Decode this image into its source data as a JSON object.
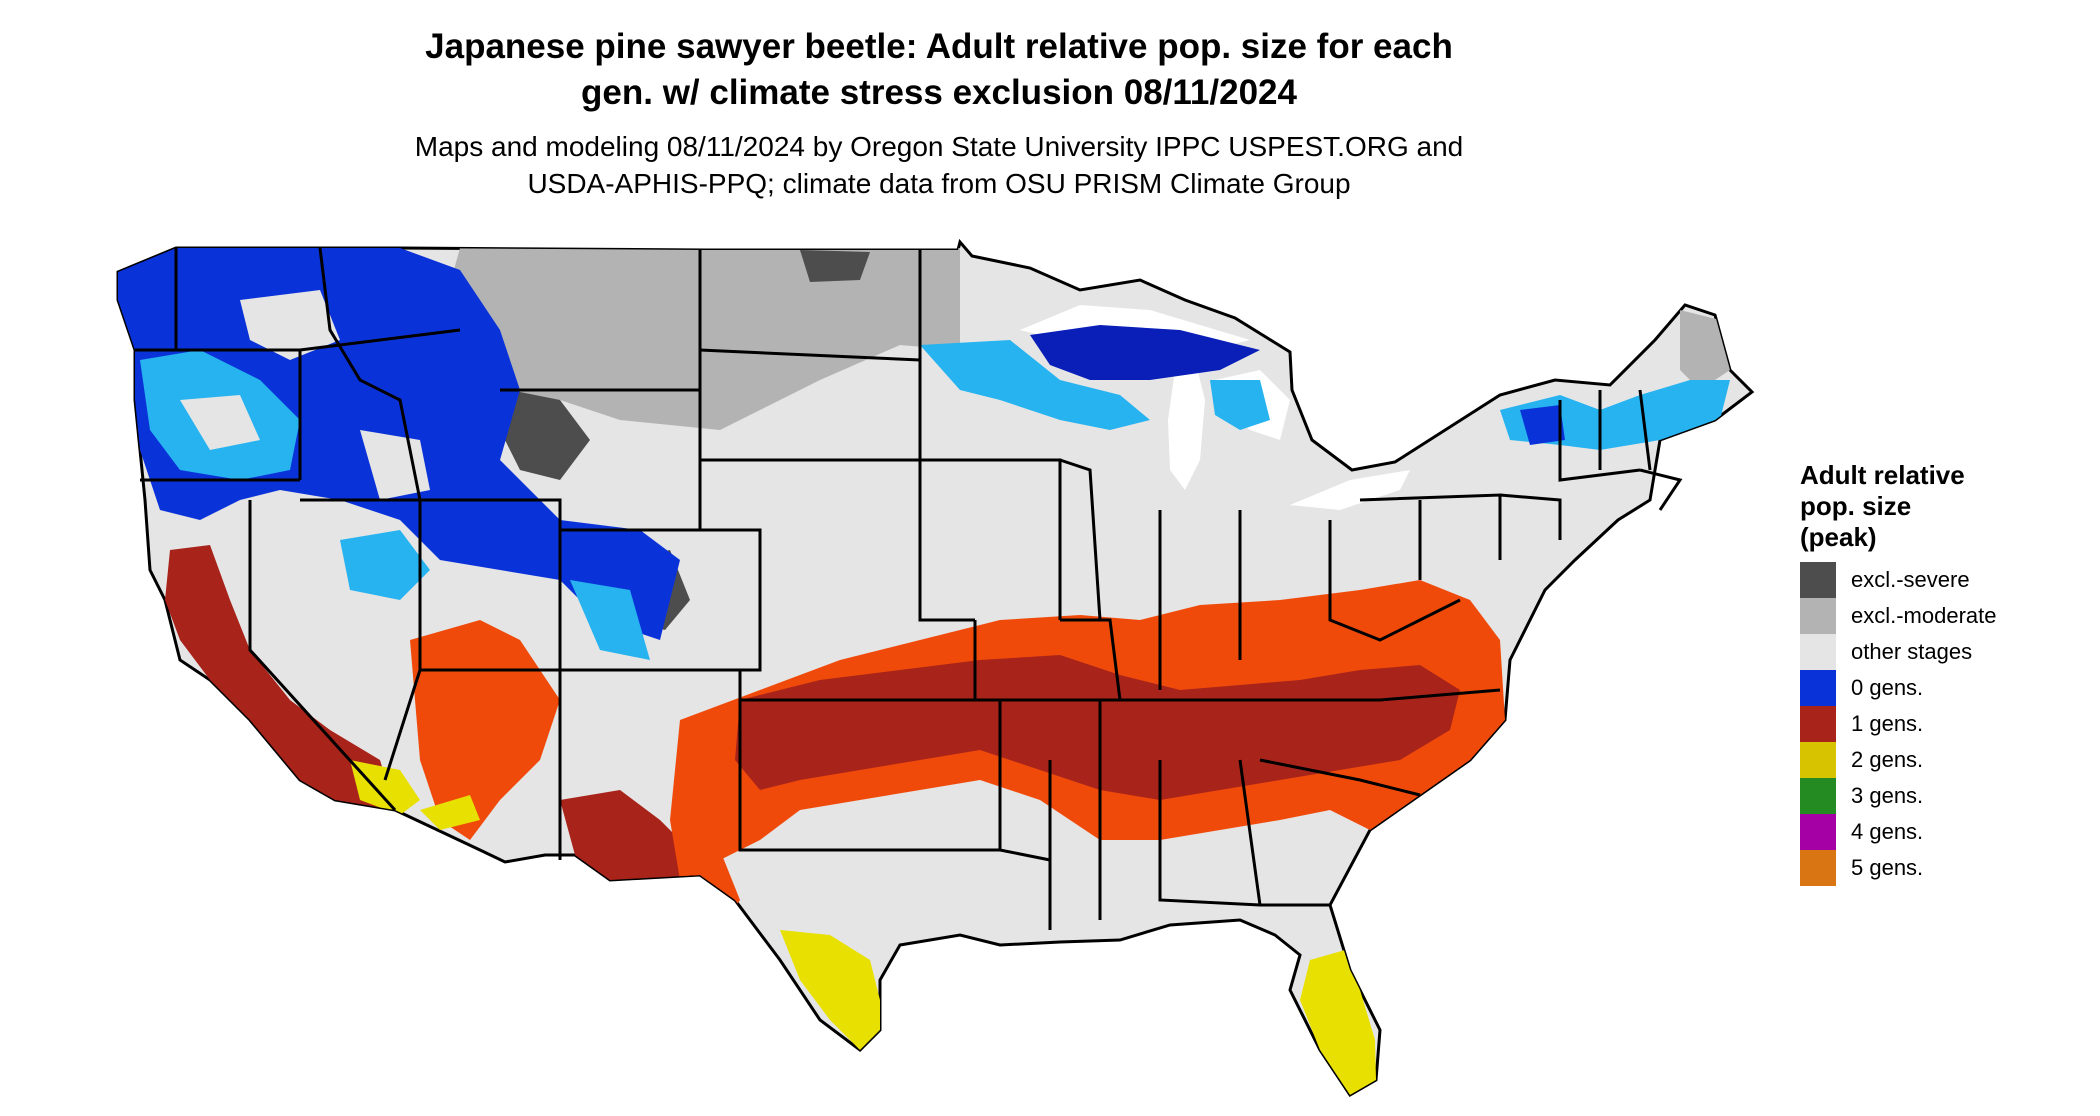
{
  "title": {
    "line1": "Japanese pine sawyer beetle: Adult relative pop. size for each",
    "line2": "gen. w/ climate stress exclusion 08/11/2024"
  },
  "subtitle": {
    "line1": "Maps and modeling 08/11/2024 by Oregon State University IPPC USPEST.ORG and",
    "line2": "USDA-APHIS-PPQ; climate data from OSU PRISM Climate Group"
  },
  "legend": {
    "title_lines": [
      "Adult relative",
      "pop. size",
      "(peak)"
    ],
    "items": [
      {
        "label": "excl.-severe",
        "color": "#4d4d4d"
      },
      {
        "label": "excl.-moderate",
        "color": "#b3b3b3"
      },
      {
        "label": "other stages",
        "color": "#e5e5e5"
      },
      {
        "label": "0 gens.",
        "color": "#0a32d9"
      },
      {
        "label": "1 gens.",
        "color": "#a8231a"
      },
      {
        "label": "2 gens.",
        "color": "#d8c300"
      },
      {
        "label": "3 gens.",
        "color": "#238b22"
      },
      {
        "label": "4 gens.",
        "color": "#a400a6"
      },
      {
        "label": "5 gens.",
        "color": "#d97613"
      }
    ]
  },
  "map_colors": {
    "base": "#e5e5e5",
    "outline": "#000000",
    "light_blue": "#27b3f0",
    "dark_blue": "#0a1fb8",
    "orange_red": "#f04a0a",
    "dark_red": "#8b1f1a",
    "yellow": "#e8e000"
  }
}
